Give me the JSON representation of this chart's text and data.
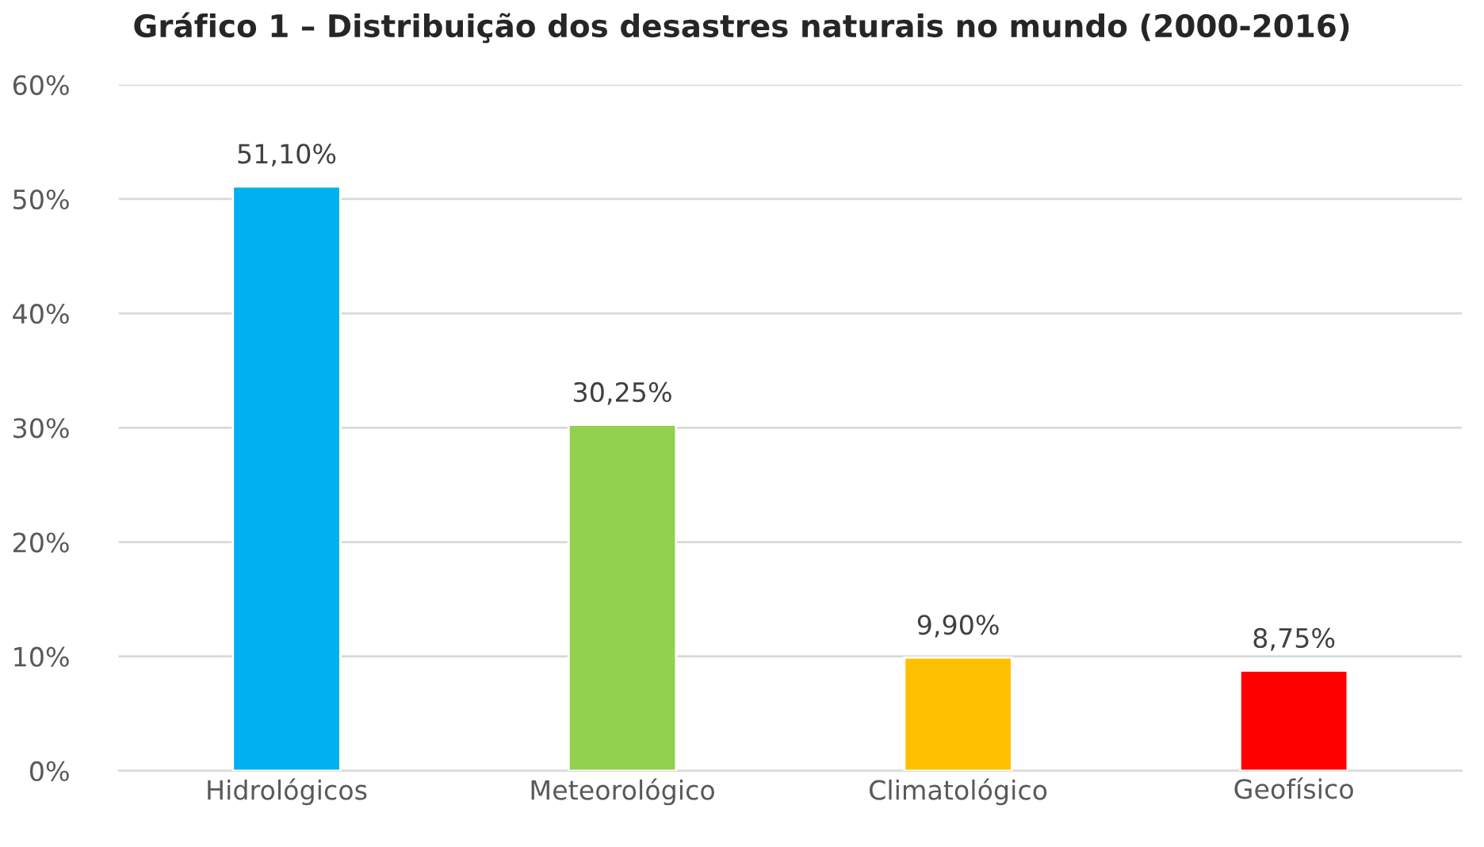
{
  "chart_data": {
    "type": "bar",
    "title": "Gráfico 1 – Distribuição dos desastres naturais no mundo (2000-2016)",
    "categories": [
      "Hidrológicos",
      "Meteorológico",
      "Climatológico",
      "Geofísico"
    ],
    "values": [
      51.1,
      30.25,
      9.9,
      8.75
    ],
    "colors": [
      "#00b0f0",
      "#92d050",
      "#ffc000",
      "#ff0000"
    ],
    "value_labels": [
      "51,10%",
      "30,25%",
      "9,90%",
      "8,75%"
    ],
    "ylim": [
      0,
      60
    ],
    "yticks": [
      {
        "value": 0,
        "label": "0%"
      },
      {
        "value": 10,
        "label": "10%"
      },
      {
        "value": 20,
        "label": "20%"
      },
      {
        "value": 30,
        "label": "30%"
      },
      {
        "value": 40,
        "label": "40%"
      },
      {
        "value": 50,
        "label": "50%"
      },
      {
        "value": 60,
        "label": "60%"
      }
    ],
    "grid": "y"
  }
}
